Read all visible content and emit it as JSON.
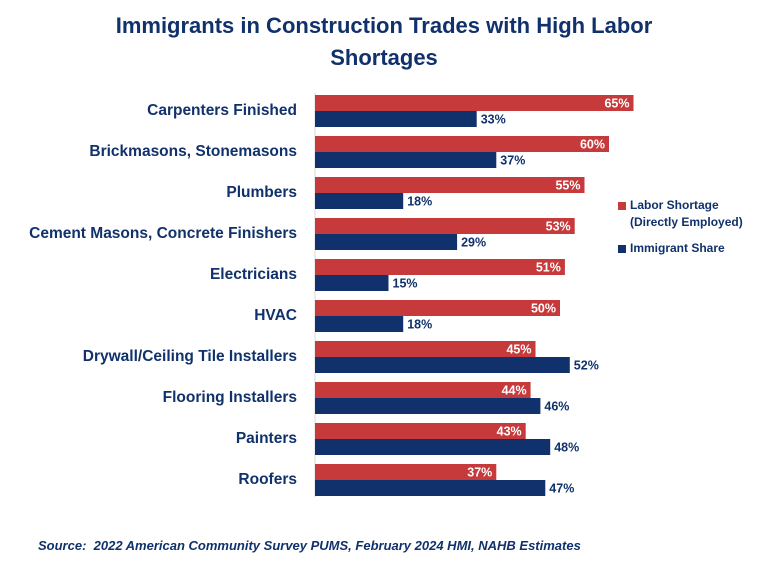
{
  "colors": {
    "labor": "#c63a3b",
    "immigrant": "#10316b",
    "text": "#10316b"
  },
  "chart_data": {
    "type": "bar",
    "orientation": "horizontal",
    "title": "Immigrants in Construction Trades with High Labor Shortages",
    "categories": [
      "Carpenters Finished",
      "Brickmasons, Stonemasons",
      "Plumbers",
      "Cement Masons, Concrete Finishers",
      "Electricians",
      "HVAC",
      "Drywall/Ceiling Tile Installers",
      "Flooring Installers",
      "Painters",
      "Roofers"
    ],
    "series": [
      {
        "name": "Labor Shortage (Directly Employed)",
        "values": [
          65,
          60,
          55,
          53,
          51,
          50,
          45,
          44,
          43,
          37
        ],
        "labels": [
          "65%",
          "60%",
          "55%",
          "53%",
          "51%",
          "50%",
          "45%",
          "44%",
          "43%",
          "37%"
        ]
      },
      {
        "name": "Immigrant Share",
        "values": [
          33,
          37,
          18,
          29,
          15,
          18,
          52,
          46,
          48,
          47
        ],
        "labels": [
          "33%",
          "37%",
          "18%",
          "29%",
          "15%",
          "18%",
          "52%",
          "46%",
          "48%",
          "47%"
        ]
      }
    ],
    "legend": {
      "position": "right",
      "items": [
        "Labor Shortage",
        "(Directly Employed)",
        "Immigrant Share"
      ]
    },
    "grid": false,
    "xlim": [
      0,
      100
    ]
  },
  "source": "Source:  2022 American Community Survey PUMS, February 2024 HMI, NAHB Estimates"
}
